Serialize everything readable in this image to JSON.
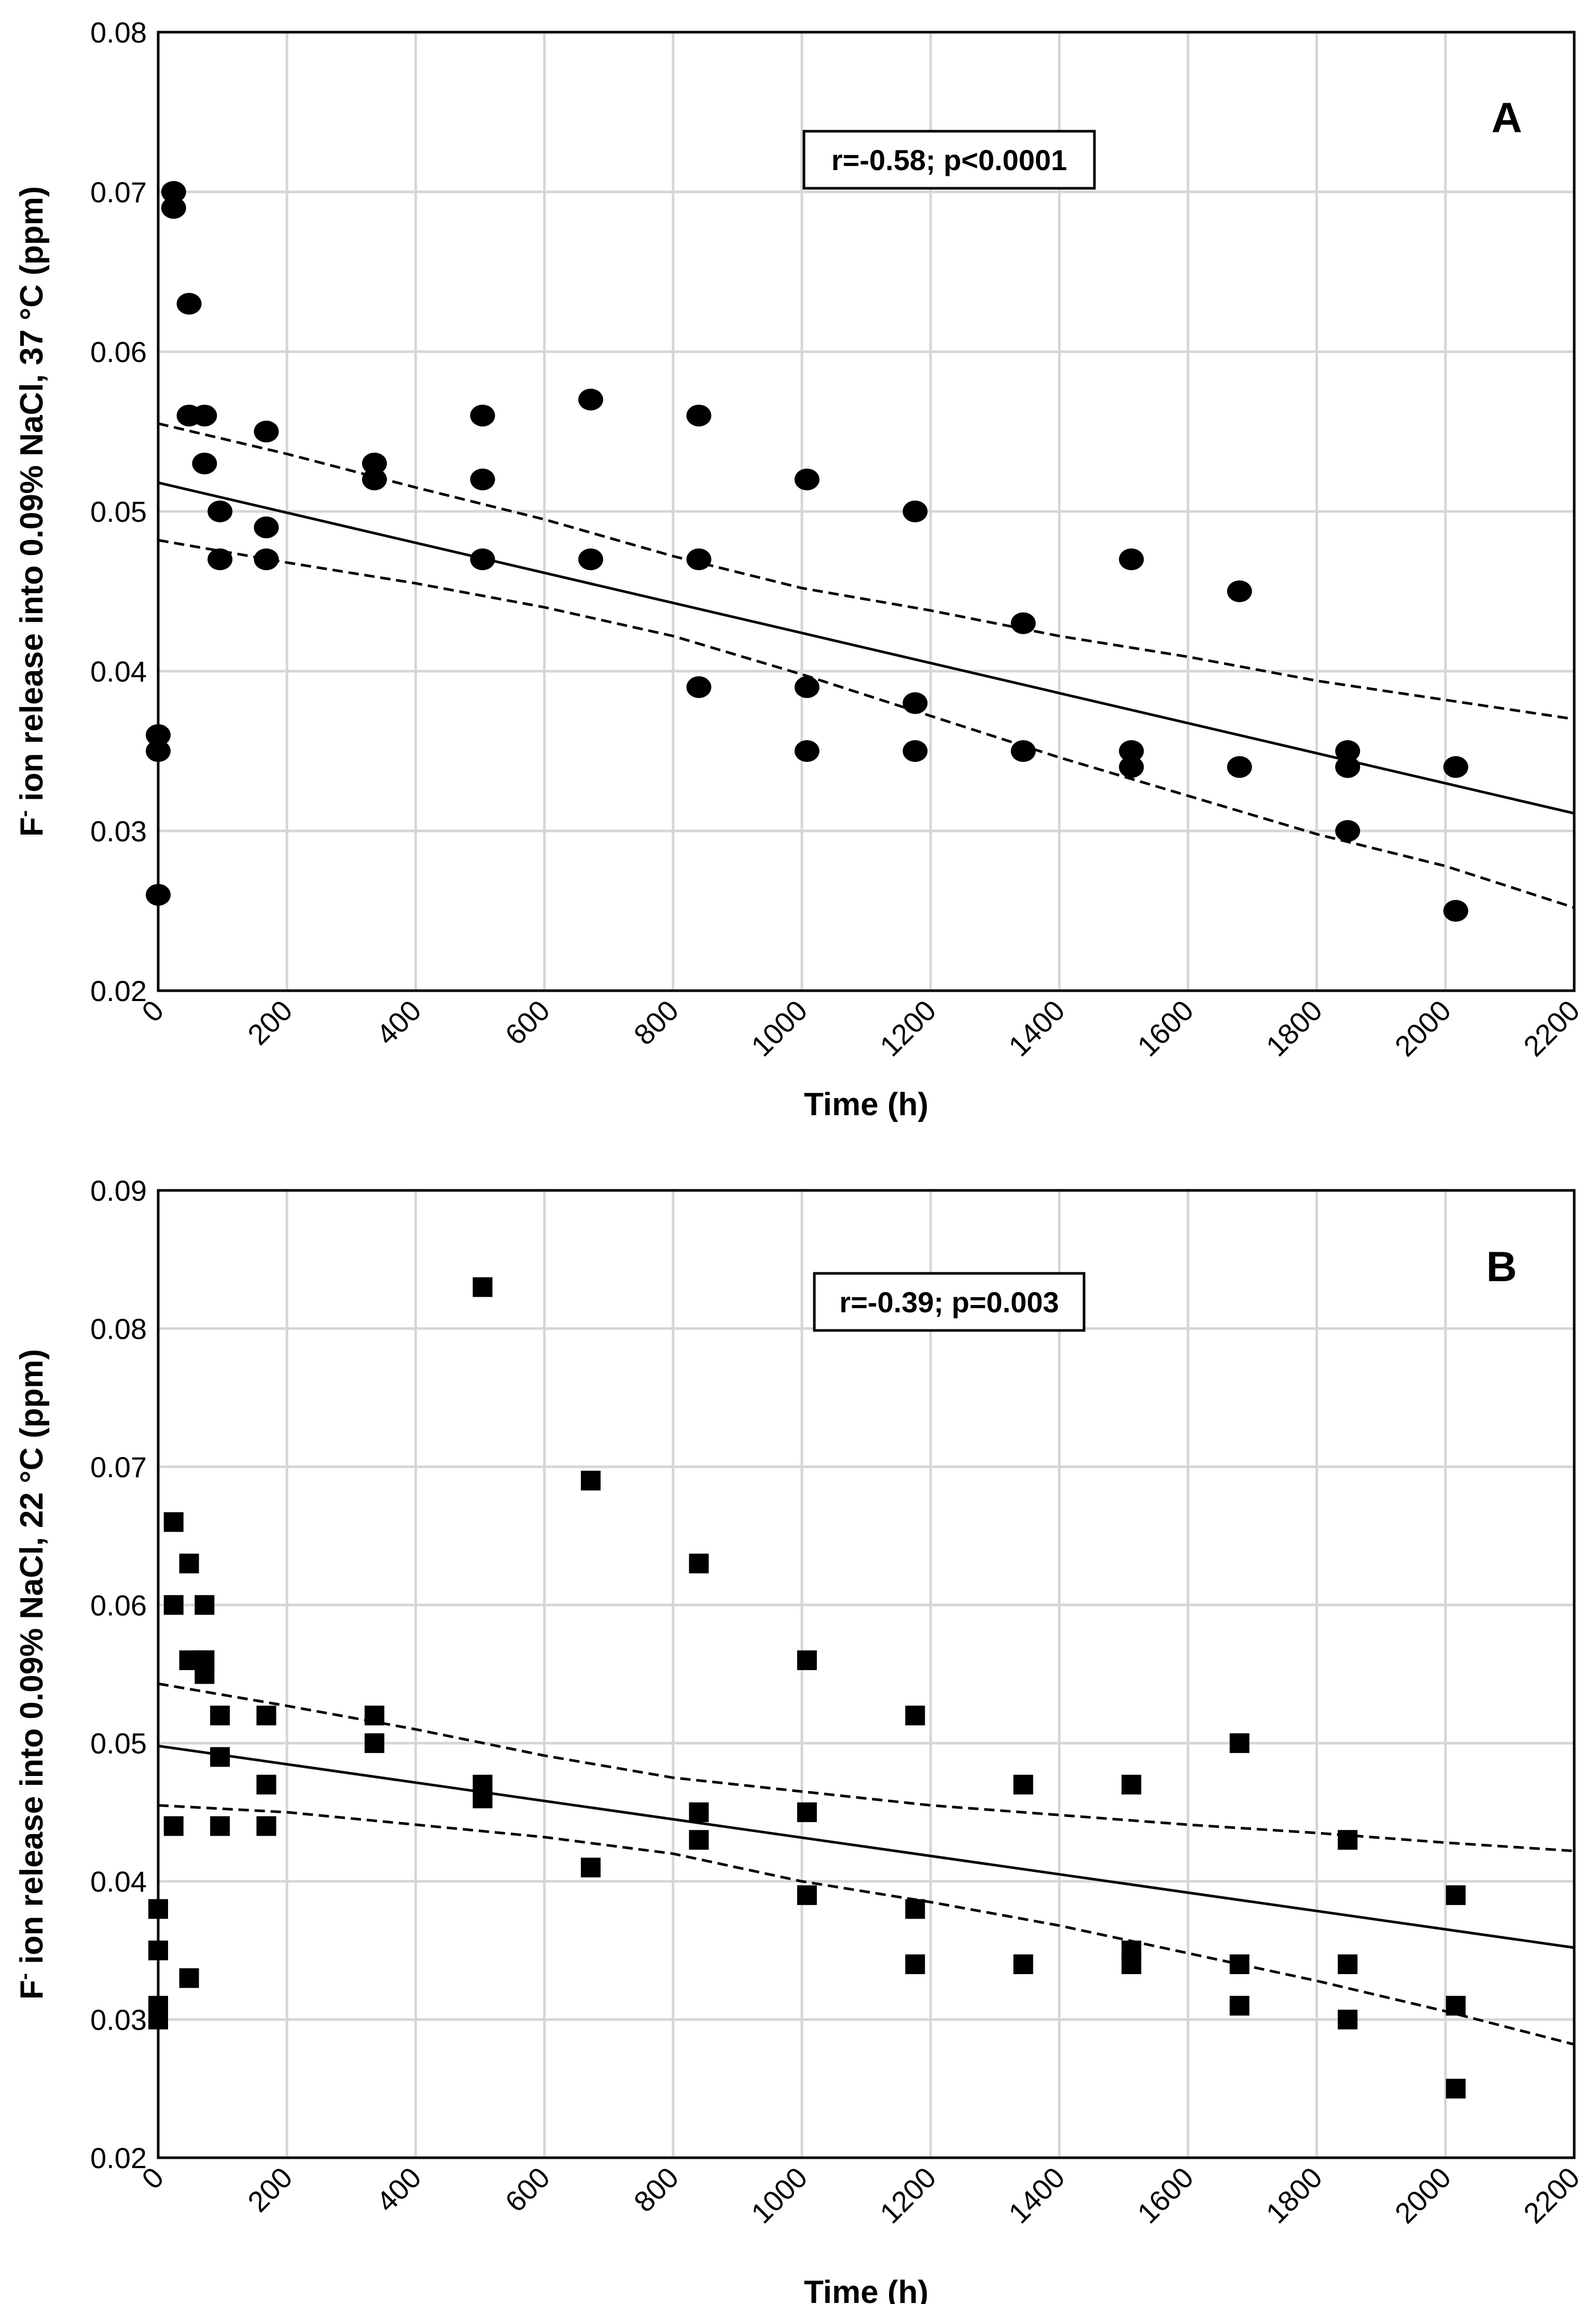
{
  "chart_data": [
    {
      "type": "scatter",
      "panel_label": "A",
      "marker": "circle",
      "annotation": "r=-0.58; p<0.0001",
      "xlabel": "Time  (h)",
      "ylabel_parts": {
        "pre": "F",
        "sup": "-",
        "post": " ion release into 0.09% NaCl, 37 °C (ppm)"
      },
      "xlim": [
        0,
        2200
      ],
      "ylim": [
        0.02,
        0.08
      ],
      "xticks": [
        "0",
        "200",
        "400",
        "600",
        "800",
        "1000",
        "1200",
        "1400",
        "1600",
        "1800",
        "2000",
        "2200"
      ],
      "yticks": [
        "0.02",
        "0.03",
        "0.04",
        "0.05",
        "0.06",
        "0.07",
        "0.08"
      ],
      "grid": true,
      "regression_line": {
        "x": [
          0,
          2200
        ],
        "y": [
          0.0518,
          0.0311
        ]
      },
      "confidence_upper": {
        "x": [
          0,
          200,
          400,
          600,
          800,
          1000,
          1200,
          1400,
          1600,
          1800,
          2000,
          2200
        ],
        "y": [
          0.0555,
          0.0536,
          0.0515,
          0.0495,
          0.0472,
          0.0452,
          0.0438,
          0.0422,
          0.0409,
          0.0394,
          0.0382,
          0.037
        ]
      },
      "confidence_lower": {
        "x": [
          0,
          200,
          400,
          600,
          800,
          1000,
          1200,
          1400,
          1600,
          1800,
          2000,
          2200
        ],
        "y": [
          0.0482,
          0.0468,
          0.0455,
          0.044,
          0.0422,
          0.0398,
          0.0372,
          0.0346,
          0.0322,
          0.0298,
          0.0278,
          0.0252
        ]
      },
      "points": {
        "x": [
          0,
          0,
          0,
          24,
          24,
          48,
          48,
          72,
          72,
          96,
          96,
          168,
          168,
          168,
          336,
          336,
          504,
          504,
          504,
          672,
          672,
          840,
          840,
          840,
          1008,
          1008,
          1008,
          1176,
          1176,
          1176,
          1344,
          1344,
          1512,
          1512,
          1512,
          1680,
          1680,
          1848,
          1848,
          1848,
          1848,
          2016,
          2016
        ],
        "y": [
          0.036,
          0.035,
          0.026,
          0.07,
          0.069,
          0.063,
          0.056,
          0.056,
          0.053,
          0.05,
          0.047,
          0.055,
          0.049,
          0.047,
          0.053,
          0.052,
          0.056,
          0.052,
          0.047,
          0.057,
          0.047,
          0.056,
          0.047,
          0.039,
          0.052,
          0.039,
          0.035,
          0.05,
          0.038,
          0.035,
          0.043,
          0.035,
          0.047,
          0.035,
          0.034,
          0.045,
          0.034,
          0.035,
          0.034,
          0.034,
          0.03,
          0.034,
          0.025
        ]
      }
    },
    {
      "type": "scatter",
      "panel_label": "B",
      "marker": "square",
      "annotation": "r=-0.39; p=0.003",
      "xlabel": "Time  (h)",
      "ylabel_parts": {
        "pre": "F",
        "sup": "-",
        "post": " ion release into 0.09% NaCl, 22 °C (ppm)"
      },
      "xlim": [
        0,
        2200
      ],
      "ylim": [
        0.02,
        0.09
      ],
      "xticks": [
        "0",
        "200",
        "400",
        "600",
        "800",
        "1000",
        "1200",
        "1400",
        "1600",
        "1800",
        "2000",
        "2200"
      ],
      "yticks": [
        "0.02",
        "0.03",
        "0.04",
        "0.05",
        "0.06",
        "0.07",
        "0.08",
        "0.09"
      ],
      "grid": true,
      "regression_line": {
        "x": [
          0,
          2200
        ],
        "y": [
          0.0498,
          0.0352
        ]
      },
      "confidence_upper": {
        "x": [
          0,
          200,
          400,
          600,
          800,
          1000,
          1200,
          1400,
          1600,
          1800,
          2000,
          2200
        ],
        "y": [
          0.0543,
          0.0527,
          0.051,
          0.0491,
          0.0475,
          0.0465,
          0.0455,
          0.0448,
          0.0441,
          0.0435,
          0.0428,
          0.0422
        ]
      },
      "confidence_lower": {
        "x": [
          0,
          200,
          400,
          600,
          800,
          1000,
          1200,
          1400,
          1600,
          1800,
          2000,
          2200
        ],
        "y": [
          0.0455,
          0.045,
          0.0441,
          0.0432,
          0.042,
          0.04,
          0.0385,
          0.0368,
          0.0348,
          0.0328,
          0.0306,
          0.0282
        ]
      },
      "points": {
        "x": [
          0,
          0,
          0,
          0,
          24,
          24,
          24,
          48,
          48,
          48,
          72,
          72,
          72,
          72,
          96,
          96,
          96,
          168,
          168,
          168,
          336,
          336,
          504,
          504,
          504,
          672,
          672,
          840,
          840,
          840,
          1008,
          1008,
          1008,
          1176,
          1176,
          1176,
          1344,
          1344,
          1512,
          1512,
          1512,
          1680,
          1680,
          1680,
          1848,
          1848,
          1848,
          2016,
          2016,
          2016
        ],
        "y": [
          0.038,
          0.035,
          0.031,
          0.03,
          0.066,
          0.06,
          0.044,
          0.063,
          0.056,
          0.033,
          0.06,
          0.056,
          0.055,
          0.056,
          0.052,
          0.049,
          0.044,
          0.052,
          0.047,
          0.044,
          0.052,
          0.05,
          0.083,
          0.047,
          0.046,
          0.069,
          0.041,
          0.063,
          0.045,
          0.043,
          0.056,
          0.045,
          0.039,
          0.052,
          0.038,
          0.034,
          0.047,
          0.034,
          0.047,
          0.035,
          0.034,
          0.05,
          0.034,
          0.031,
          0.043,
          0.034,
          0.03,
          0.039,
          0.031,
          0.025
        ]
      }
    }
  ]
}
